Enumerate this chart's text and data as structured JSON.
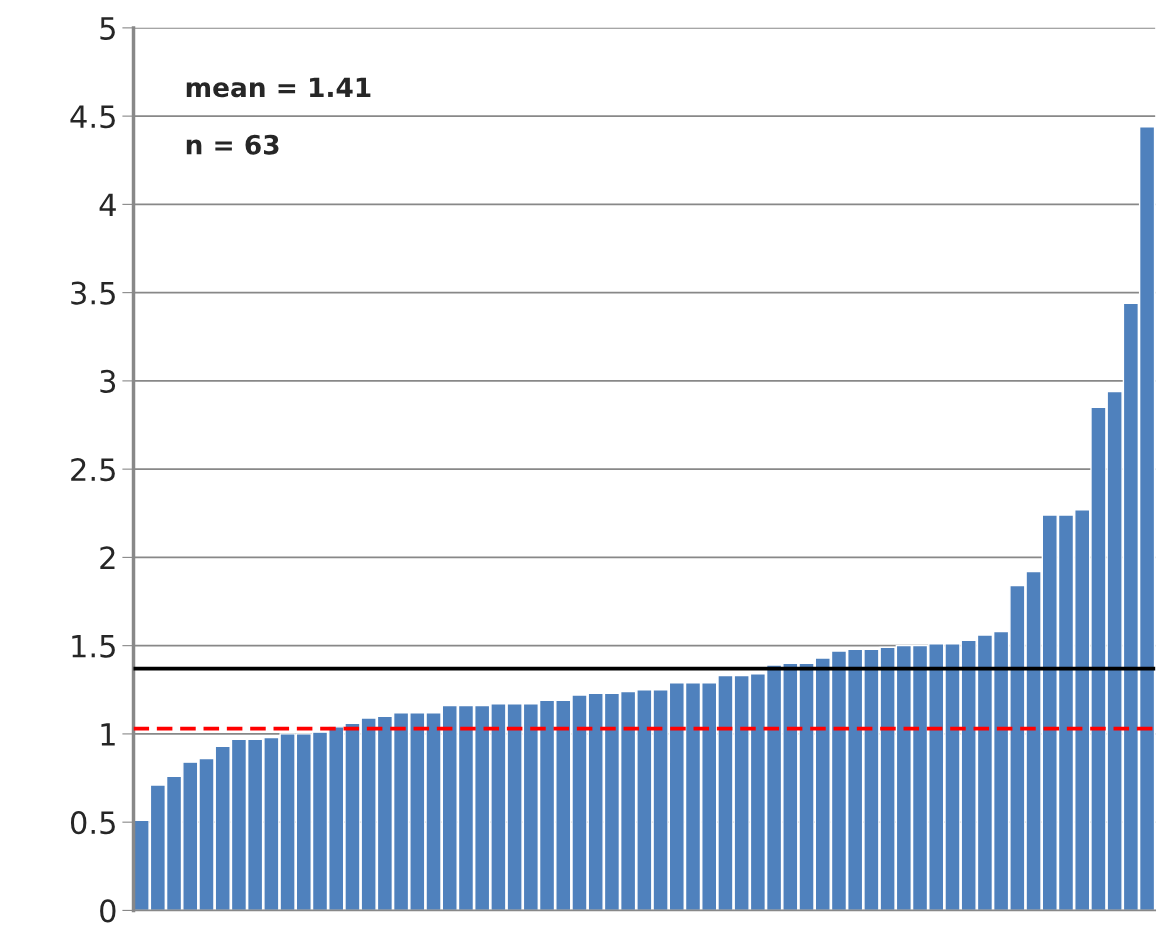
{
  "chart_data": {
    "type": "bar",
    "categories": [
      null,
      null,
      null,
      null,
      null,
      null,
      null,
      null,
      null,
      null,
      null,
      null,
      null,
      null,
      null,
      null,
      null,
      null,
      null,
      null,
      null,
      null,
      null,
      null,
      null,
      null,
      null,
      null,
      null,
      null,
      null,
      null,
      null,
      null,
      null,
      null,
      null,
      null,
      null,
      null,
      null,
      null,
      null,
      null,
      null,
      null,
      null,
      null,
      null,
      null,
      null,
      null,
      null,
      null,
      null,
      null,
      null,
      null,
      null,
      null,
      null,
      null,
      null
    ],
    "values": [
      0.51,
      0.71,
      0.76,
      0.84,
      0.86,
      0.93,
      0.97,
      0.97,
      0.98,
      1.0,
      1.0,
      1.01,
      1.04,
      1.06,
      1.09,
      1.1,
      1.12,
      1.12,
      1.12,
      1.16,
      1.16,
      1.16,
      1.17,
      1.17,
      1.17,
      1.19,
      1.19,
      1.22,
      1.23,
      1.23,
      1.24,
      1.25,
      1.25,
      1.29,
      1.29,
      1.29,
      1.33,
      1.33,
      1.34,
      1.39,
      1.4,
      1.4,
      1.43,
      1.47,
      1.48,
      1.48,
      1.49,
      1.5,
      1.5,
      1.51,
      1.51,
      1.53,
      1.56,
      1.58,
      1.84,
      1.92,
      2.24,
      2.24,
      2.27,
      2.85,
      2.94,
      3.44,
      4.44
    ],
    "color": "#4f81bd",
    "ylim": [
      0,
      5
    ],
    "yticks": [
      0,
      0.5,
      1,
      1.5,
      2,
      2.5,
      3,
      3.5,
      4,
      4.5,
      5
    ],
    "grid": "y",
    "tick_labels": "y",
    "ref_lines": [
      {
        "axis": "y",
        "value": 1.37,
        "color": "#000000",
        "line_style": "solid"
      },
      {
        "axis": "y",
        "value": 1.03,
        "color": "#ff0000",
        "line_style": "dashed"
      }
    ],
    "annotations": [
      "mean = 1.41",
      "n = 63"
    ]
  }
}
